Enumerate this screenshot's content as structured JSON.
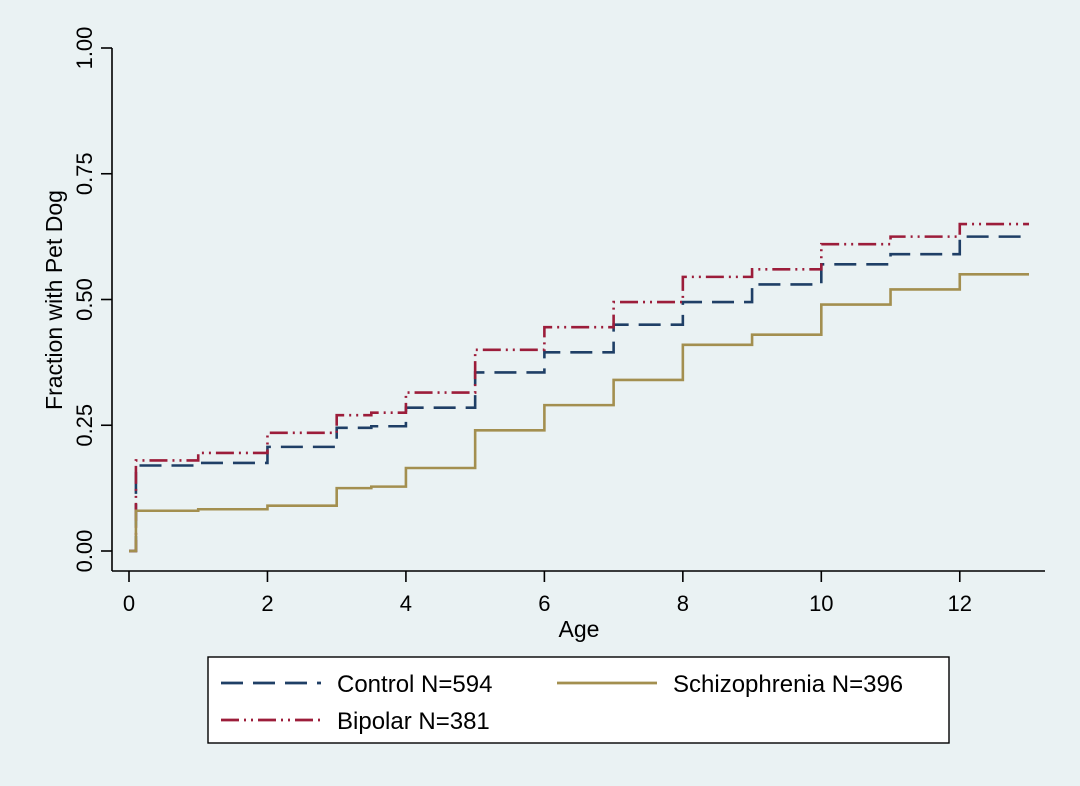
{
  "chart_data": {
    "type": "line",
    "step": true,
    "xlabel": "Age",
    "ylabel": "Fraction with Pet Dog",
    "xlim": [
      0,
      13
    ],
    "ylim": [
      0,
      1
    ],
    "xticks": [
      "0",
      "2",
      "4",
      "6",
      "8",
      "10",
      "12"
    ],
    "yticks": [
      "0.00",
      "0.25",
      "0.50",
      "0.75",
      "1.00"
    ],
    "grid": false,
    "legend_position": "bottom",
    "series": [
      {
        "name": "Control N=594",
        "color": "#1f3f66",
        "dash": "long-dash",
        "x": [
          0,
          0.1,
          1,
          2,
          3,
          3.5,
          4,
          5,
          6,
          7,
          8,
          9,
          10,
          11,
          12,
          13
        ],
        "y": [
          0,
          0.17,
          0.175,
          0.207,
          0.245,
          0.248,
          0.285,
          0.355,
          0.395,
          0.45,
          0.495,
          0.53,
          0.57,
          0.59,
          0.625,
          0.625
        ]
      },
      {
        "name": "Bipolar N=381",
        "color": "#9c1d3a",
        "dash": "dash-dot-dot",
        "x": [
          0,
          0.1,
          1,
          2,
          3,
          3.5,
          4,
          5,
          6,
          7,
          8,
          9,
          10,
          11,
          12,
          13
        ],
        "y": [
          0,
          0.18,
          0.195,
          0.235,
          0.27,
          0.275,
          0.315,
          0.4,
          0.445,
          0.495,
          0.545,
          0.56,
          0.61,
          0.625,
          0.65,
          0.65
        ]
      },
      {
        "name": "Schizophrenia N=396",
        "color": "#a38f4f",
        "dash": "solid",
        "x": [
          0,
          0.1,
          1,
          2,
          3,
          3.5,
          4,
          5,
          6,
          7,
          8,
          9,
          10,
          11,
          12,
          13
        ],
        "y": [
          0,
          0.08,
          0.083,
          0.09,
          0.125,
          0.128,
          0.165,
          0.24,
          0.29,
          0.34,
          0.41,
          0.43,
          0.49,
          0.52,
          0.55,
          0.55
        ]
      }
    ]
  }
}
